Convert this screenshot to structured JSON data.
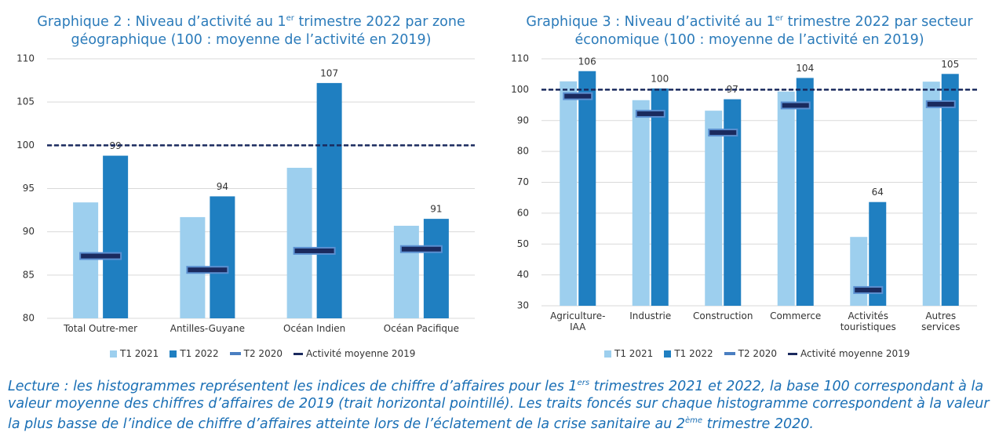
{
  "chart_data": [
    {
      "type": "bar",
      "title": [
        "Graphique 2 : Niveau d’activité au 1",
        "er",
        " trimestre 2022 par zone géographique (100 : moyenne de l’activité en 2019)"
      ],
      "categories": [
        "Total Outre-mer",
        "Antilles-Guyane",
        "Océan Indien",
        "Océan Pacifique"
      ],
      "series": [
        {
          "name": "T1 2021",
          "color": "#9dcfee",
          "style": "bar",
          "values": [
            93.4,
            91.7,
            97.4,
            90.7
          ]
        },
        {
          "name": "T1 2022",
          "color": "#1f7fc1",
          "style": "bar",
          "values": [
            98.8,
            94.1,
            107.2,
            91.5
          ],
          "value_labels": [
            "99",
            "94",
            "107",
            "91"
          ]
        },
        {
          "name": "T2 2020",
          "color": "#1a2a5e",
          "style": "marker",
          "values": [
            87.2,
            85.6,
            87.8,
            88.0
          ]
        }
      ],
      "reference": {
        "name": "Activité moyenne 2019",
        "color": "#1a2a5e",
        "value": 100
      },
      "ylim": [
        80,
        110
      ],
      "yticks": [
        80,
        85,
        90,
        95,
        100,
        105,
        110
      ],
      "grid": true,
      "legend": "bottom"
    },
    {
      "type": "bar",
      "title": [
        "Graphique 3 : Niveau d’activité au 1",
        "er",
        " trimestre 2022 par secteur économique (100 : moyenne de l’activité en 2019)"
      ],
      "categories": [
        "Agriculture-IAA",
        "Industrie",
        "Construction",
        "Commerce",
        "Activités touristiques",
        "Autres services"
      ],
      "series": [
        {
          "name": "T1 2021",
          "color": "#9dcfee",
          "style": "bar",
          "values": [
            102.7,
            96.6,
            93.2,
            99.4,
            52.3,
            102.6
          ]
        },
        {
          "name": "T1 2022",
          "color": "#1f7fc1",
          "style": "bar",
          "values": [
            106.0,
            100.4,
            96.9,
            103.8,
            63.6,
            105.1
          ],
          "value_labels": [
            "106",
            "100",
            "97",
            "104",
            "64",
            "105"
          ]
        },
        {
          "name": "T2 2020",
          "color": "#1a2a5e",
          "style": "marker",
          "values": [
            97.9,
            92.2,
            86.1,
            94.9,
            35.1,
            95.3
          ]
        }
      ],
      "reference": {
        "name": "Activité moyenne 2019",
        "color": "#1a2a5e",
        "value": 100
      },
      "ylim": [
        30,
        110
      ],
      "yticks": [
        30,
        40,
        50,
        60,
        70,
        80,
        90,
        100,
        110
      ],
      "grid": true,
      "legend": "bottom"
    }
  ],
  "caption": [
    "Lecture : les histogrammes représentent les indices de chiffre d’affaires pour les 1",
    "ers",
    " trimestres 2021 et 2022, la base 100 correspondant à la valeur moyenne des chiffres d’affaires de 2019 (trait horizontal pointillé). Les traits foncés sur chaque histogramme correspondent à la valeur la plus basse de l’indice de chiffre d’affaires atteinte lors de l’éclatement de la crise sanitaire au 2",
    "ème",
    " trimestre 2020."
  ]
}
